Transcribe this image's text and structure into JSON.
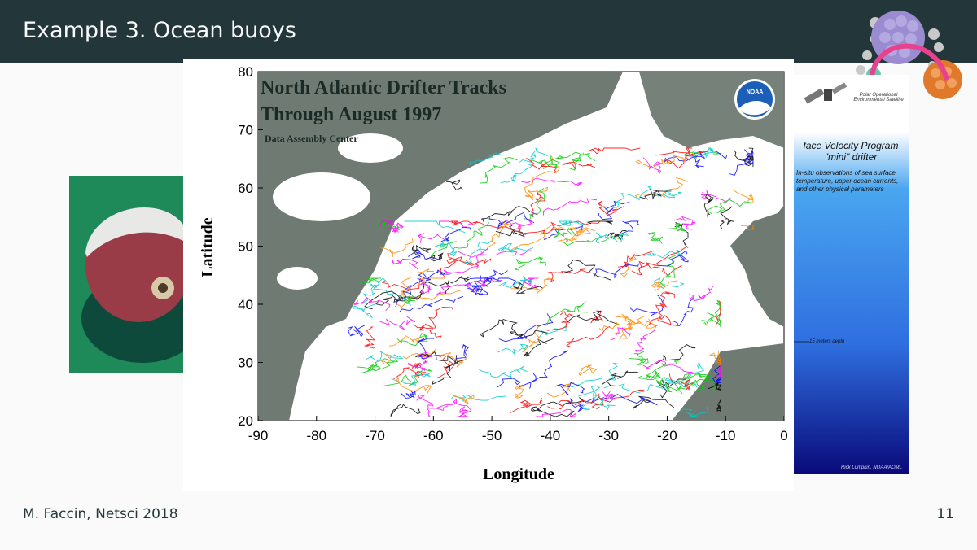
{
  "slide": {
    "title": "Example 3. Ocean buoys",
    "footer_author": "M. Faccin, Netsci 2018",
    "page_number": "11"
  },
  "map": {
    "title_line1": "North Atlantic Drifter Tracks",
    "title_line2": "Through August 1997",
    "subtitle": "Data Assembly Center",
    "logo_text": "NOAA",
    "xlabel": "Longitude",
    "ylabel": "Latitude",
    "x_ticks": [
      "-90",
      "-80",
      "-70",
      "-60",
      "-50",
      "-40",
      "-30",
      "-20",
      "-10",
      "0"
    ],
    "y_ticks": [
      "80",
      "70",
      "60",
      "50",
      "40",
      "30",
      "20"
    ],
    "colors": {
      "ocean": "#ffffff",
      "land": "#6f7a73",
      "tracks": [
        "#000000",
        "#ff0000",
        "#00cc00",
        "#0000ff",
        "#ff00ff",
        "#00cccc",
        "#ff8800"
      ]
    }
  },
  "poster": {
    "caption": "Polar Operational Environmental Satellite",
    "heading_line1": "face Velocity Program",
    "heading_line2": "\"mini\" drifter",
    "text": "In-situ observations of sea surface temperature, upper ocean currents, and other physical parameters",
    "depth_label": "15 meters depth",
    "credit": "Rick Lumpkin, NOAA/AOML"
  }
}
